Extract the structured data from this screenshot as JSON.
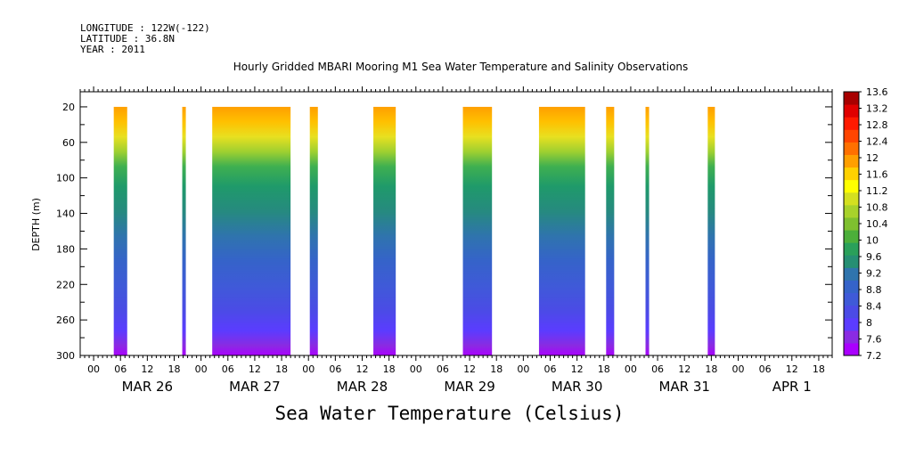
{
  "header": {
    "longitude": "LONGITUDE : 122W(-122)",
    "latitude": "LATITUDE : 36.8N",
    "year": "YEAR : 2011"
  },
  "chart_data": {
    "type": "heatmap",
    "title": "Hourly Gridded MBARI Mooring M1 Sea Water Temperature and Salinity Observations",
    "xlabel": "",
    "ylabel": "DEPTH (m)",
    "colorbar_label": "Sea Water Temperature (Celsius)",
    "x_hour_ticks": [
      "00",
      "06",
      "12",
      "18",
      "00",
      "06",
      "12",
      "18",
      "00",
      "06",
      "12",
      "18",
      "00",
      "06",
      "12",
      "18",
      "00",
      "06",
      "12",
      "18",
      "00",
      "06",
      "12",
      "18",
      "00",
      "06",
      "12",
      "18"
    ],
    "x_day_labels": [
      {
        "label": "MAR 26",
        "day": 0
      },
      {
        "label": "MAR 27",
        "day": 1
      },
      {
        "label": "MAR 28",
        "day": 2
      },
      {
        "label": "MAR 29",
        "day": 3
      },
      {
        "label": "MAR 30",
        "day": 4
      },
      {
        "label": "MAR 31",
        "day": 5
      },
      {
        "label": "APR 1",
        "day": 6
      }
    ],
    "x_range_hours_from_mar26_00": [
      -3,
      165
    ],
    "y_ticks": [
      "20",
      "60",
      "100",
      "140",
      "180",
      "220",
      "260",
      "300"
    ],
    "y_tick_values": [
      20,
      60,
      100,
      140,
      180,
      220,
      260,
      300
    ],
    "ylim": [
      3,
      300
    ],
    "y_inverted": true,
    "data_depth_range": [
      20,
      300
    ],
    "colorbar_levels": [
      "13.6",
      "13.2",
      "12.8",
      "12.4",
      "12",
      "11.6",
      "11.2",
      "10.8",
      "10.4",
      "10",
      "9.6",
      "9.2",
      "8.8",
      "8.4",
      "8",
      "7.6",
      "7.2"
    ],
    "colorbar_range": [
      7.2,
      13.6
    ],
    "colors": [
      "#aa00ff",
      "#8a2be2",
      "#5b3cff",
      "#4b4be6",
      "#3f5ad8",
      "#3563c9",
      "#2f74ad",
      "#268f73",
      "#2aa05a",
      "#4caf3a",
      "#7fc02f",
      "#a8d22b",
      "#d4e020",
      "#ffff00",
      "#ffd100",
      "#ff9f00",
      "#ff7000",
      "#ff4500",
      "#ff1a00",
      "#e00000",
      "#a80000"
    ],
    "observation_segments_hours_from_mar26_00": [
      [
        4.5,
        7.5
      ],
      [
        19.8,
        20.6
      ],
      [
        26.5,
        44
      ],
      [
        48.3,
        50.1
      ],
      [
        62.5,
        67.5
      ],
      [
        82.5,
        89
      ],
      [
        99.5,
        109.8
      ],
      [
        114.5,
        116.3
      ],
      [
        123.3,
        124.1
      ],
      [
        137.2,
        138.8
      ]
    ]
  }
}
